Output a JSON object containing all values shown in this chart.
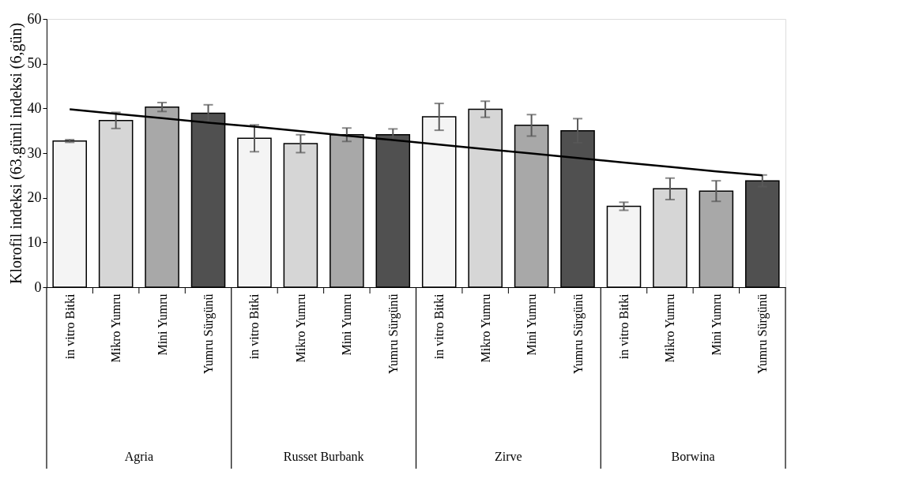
{
  "chart_data": {
    "type": "bar",
    "ylabel": "Klorofil indeksi (63.günil indeksi (6,gün)",
    "categories": [
      "in vitro Bitki",
      "Mikro Yumru",
      "Mini Yumru",
      "Yumru Sürgünü",
      "in vitro Bitki",
      "Mikro Yumru",
      "Mini Yumru",
      "Yumru Sürgünü",
      "in vitro Bitki",
      "Mikro Yumru",
      "Mini Yumru",
      "Yumru Sürgünü",
      "in vitro Bitki",
      "Mikro Yumru",
      "Mini Yumru",
      "Yumru Sürgünü"
    ],
    "series": [
      {
        "values": [
          32.7,
          37.3,
          40.3,
          38.9,
          33.3,
          32.1,
          34.1,
          34.1,
          38.1,
          39.8,
          36.2,
          35.0,
          18.1,
          22.0,
          21.5,
          23.8
        ],
        "colors": [
          "#f4f4f4",
          "#d6d6d6",
          "#a8a8a8",
          "#505050",
          "#f4f4f4",
          "#d6d6d6",
          "#a8a8a8",
          "#505050",
          "#f4f4f4",
          "#d6d6d6",
          "#a8a8a8",
          "#505050",
          "#f4f4f4",
          "#d6d6d6",
          "#a8a8a8",
          "#505050"
        ],
        "errors": [
          0.3,
          1.8,
          1.0,
          1.9,
          3.0,
          2.0,
          1.5,
          1.3,
          3.0,
          1.8,
          2.4,
          2.7,
          0.9,
          2.4,
          2.3,
          1.3
        ]
      },
      {
        "type": "line",
        "color": "#000000",
        "values": [
          39.8,
          38.8,
          37.8,
          36.8,
          35.9,
          34.9,
          33.9,
          32.9,
          31.9,
          30.9,
          29.9,
          28.9,
          27.9,
          26.9,
          25.9,
          25.0
        ]
      }
    ],
    "annotations": [
      "Agria",
      "Russet Burbank",
      "Zirve",
      "Borwina"
    ],
    "ylim": [
      0,
      60
    ],
    "yticks": [
      0,
      10,
      20,
      30,
      40,
      50,
      60
    ],
    "grid": false,
    "legend": false
  }
}
